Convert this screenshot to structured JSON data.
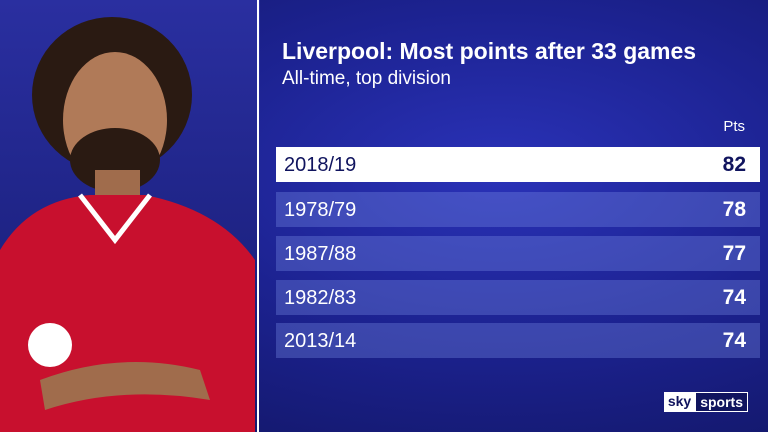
{
  "header": {
    "title": "Liverpool: Most points after 33 games",
    "subtitle": "All-time, top division"
  },
  "table": {
    "columns": [
      "Pts"
    ],
    "rows": [
      [
        "2018/19",
        82
      ],
      [
        "1978/79",
        78
      ],
      [
        "1987/88",
        77
      ],
      [
        "1982/83",
        74
      ],
      [
        "2013/14",
        74
      ]
    ]
  },
  "footer": {
    "brand": "sky",
    "brand_suffix": "sports"
  }
}
